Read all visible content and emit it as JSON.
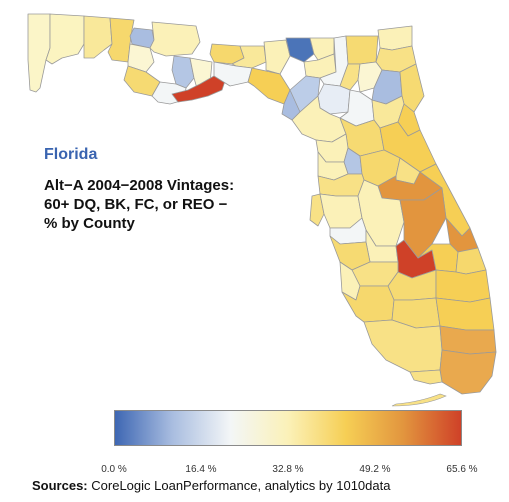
{
  "map": {
    "state_label": "Florida",
    "subtitle_lines": [
      "Alt−A 2004−2008 Vintages:",
      "60+ DQ, BK, FC, or REO −",
      "% by County"
    ],
    "colors": {
      "scale": [
        "#3e67b3",
        "#a9bde0",
        "#f3f6f7",
        "#fbf1b8",
        "#f6cf55",
        "#e2953e",
        "#cf4128"
      ],
      "border": "#999999",
      "title": "#3a64b0"
    }
  },
  "legend": {
    "min": 0,
    "max": 65.6,
    "ticks": [
      "0.0 %",
      "16.4 %",
      "32.8 %",
      "49.2 %",
      "65.6 %"
    ]
  },
  "sources": {
    "label": "Sources:",
    "text": "CoreLogic LoanPerformance, analytics by 1010data"
  }
}
